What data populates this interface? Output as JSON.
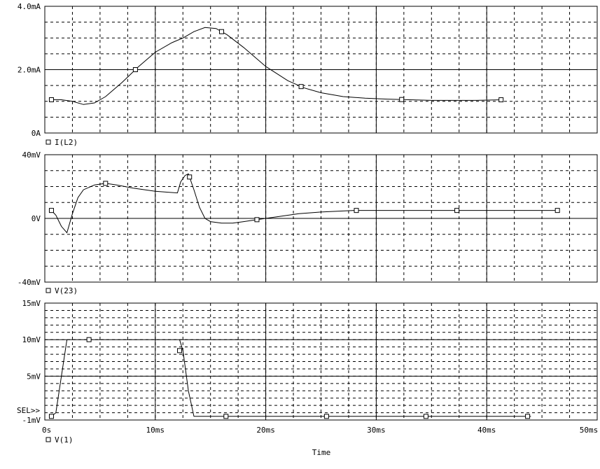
{
  "xaxis": {
    "title": "Time",
    "range": [
      0,
      50
    ],
    "unit": "ms",
    "ticks": [
      0,
      10,
      20,
      30,
      40,
      50
    ],
    "tick_labels": [
      "0s",
      "10ms",
      "20ms",
      "30ms",
      "40ms",
      "50ms"
    ],
    "minor_step": 2.5
  },
  "chart_data": [
    {
      "type": "line",
      "xlabel": "Time",
      "ylabel": "",
      "ylim": [
        0,
        4.0
      ],
      "yunit": "mA",
      "yticks": [
        0,
        2.0,
        4.0
      ],
      "ytick_labels": [
        "0A",
        "2.0mA",
        "4.0mA"
      ],
      "minor_step": 0.5,
      "grid": true,
      "series": [
        {
          "name": "I(L2)",
          "x": [
            0.5,
            1.5,
            2.5,
            3.5,
            4.5,
            5.5,
            7.0,
            8.5,
            10.0,
            11.5,
            12.5,
            13.5,
            14.5,
            15.5,
            16.5,
            18.0,
            20.0,
            22.0,
            23.5,
            25.0,
            27.0,
            29.0,
            31.0,
            33.0,
            35.0,
            37.0,
            39.0,
            41.5
          ],
          "y": [
            1.05,
            1.05,
            1.0,
            0.9,
            0.95,
            1.15,
            1.6,
            2.1,
            2.55,
            2.85,
            3.0,
            3.2,
            3.33,
            3.3,
            3.1,
            2.7,
            2.1,
            1.65,
            1.42,
            1.27,
            1.15,
            1.1,
            1.07,
            1.05,
            1.03,
            1.03,
            1.03,
            1.05
          ],
          "markers_x": [
            0.6,
            8.2,
            16.0,
            23.2,
            32.3,
            41.3
          ]
        }
      ]
    },
    {
      "type": "line",
      "xlabel": "Time",
      "ylabel": "",
      "ylim": [
        -40,
        40
      ],
      "yunit": "mV",
      "yticks": [
        -40,
        0,
        40
      ],
      "ytick_labels": [
        "-40mV",
        "0V",
        "40mV"
      ],
      "minor_step": 10,
      "grid": true,
      "series": [
        {
          "name": "V(23)",
          "x": [
            0.6,
            1.0,
            1.5,
            2.0,
            2.5,
            3.0,
            3.5,
            4.5,
            5.5,
            6.5,
            8.0,
            10.0,
            12.0,
            12.3,
            12.7,
            13.0,
            13.5,
            14.0,
            14.5,
            15.0,
            16.0,
            17.0,
            18.0,
            19.0,
            21.0,
            23.0,
            25.0,
            28.0,
            31.0,
            35.0,
            40.0,
            46.5
          ],
          "y": [
            5,
            2,
            -5,
            -9,
            3,
            13,
            18,
            21,
            22,
            21,
            19,
            17,
            16,
            23,
            27,
            28,
            18,
            7,
            0,
            -2,
            -3,
            -3,
            -2,
            -1,
            1,
            3,
            4,
            5,
            5,
            5,
            5,
            5
          ],
          "markers_x": [
            0.6,
            5.5,
            13.1,
            19.2,
            28.2,
            37.3,
            46.4
          ]
        }
      ]
    },
    {
      "type": "line",
      "xlabel": "Time",
      "ylabel": "",
      "ylim": [
        -1,
        15
      ],
      "yunit": "mV",
      "yticks": [
        -1,
        5,
        10,
        15
      ],
      "ytick_labels": [
        "-1mV",
        "5mV",
        "10mV",
        "15mV"
      ],
      "minor_step": 1,
      "grid": true,
      "annotation": "SEL>>",
      "series": [
        {
          "name": "V(1)",
          "x": [
            0.6,
            1.0,
            2.0,
            12.2,
            12.5,
            13.0,
            13.5,
            17.0,
            26.0,
            35.0,
            44.0
          ],
          "y": [
            -0.5,
            0,
            10,
            10,
            8.5,
            3,
            -0.5,
            -0.5,
            -0.5,
            -0.5,
            -0.5
          ],
          "gaps_after": [
            2
          ],
          "markers_x": [
            0.6,
            4.0,
            12.2,
            16.4,
            25.5,
            34.5,
            43.7
          ],
          "markers_y": [
            -0.5,
            10,
            8.5,
            -0.5,
            -0.5,
            -0.5,
            -0.5
          ]
        }
      ]
    }
  ]
}
